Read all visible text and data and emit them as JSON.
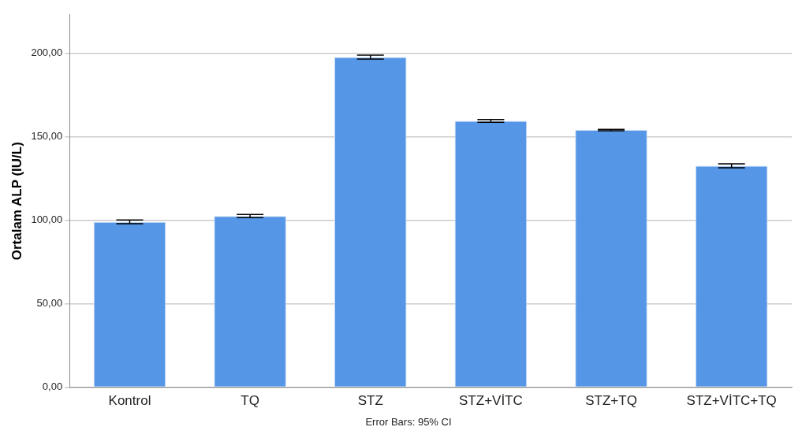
{
  "chart_data": {
    "type": "bar",
    "categories": [
      "Kontrol",
      "TQ",
      "STZ",
      "STZ+VİTC",
      "STZ+TQ",
      "STZ+VİTC+TQ"
    ],
    "values": [
      99.0,
      102.5,
      197.7,
      159.5,
      154.0,
      132.6
    ],
    "errors": [
      1.1,
      0.9,
      1.2,
      0.8,
      0.4,
      1.2
    ],
    "color": "#5596e6",
    "ylabel": "Ortalam ALP (IU/L)",
    "ylim": [
      0,
      223
    ],
    "yticks": [
      {
        "value": 0,
        "label": "0,00"
      },
      {
        "value": 50,
        "label": "50,00"
      },
      {
        "value": 100,
        "label": "100,00"
      },
      {
        "value": 150,
        "label": "150,00"
      },
      {
        "value": 200,
        "label": "200,00"
      }
    ],
    "grid": "y",
    "annotations": [
      "Error Bars: 95% CI"
    ]
  }
}
